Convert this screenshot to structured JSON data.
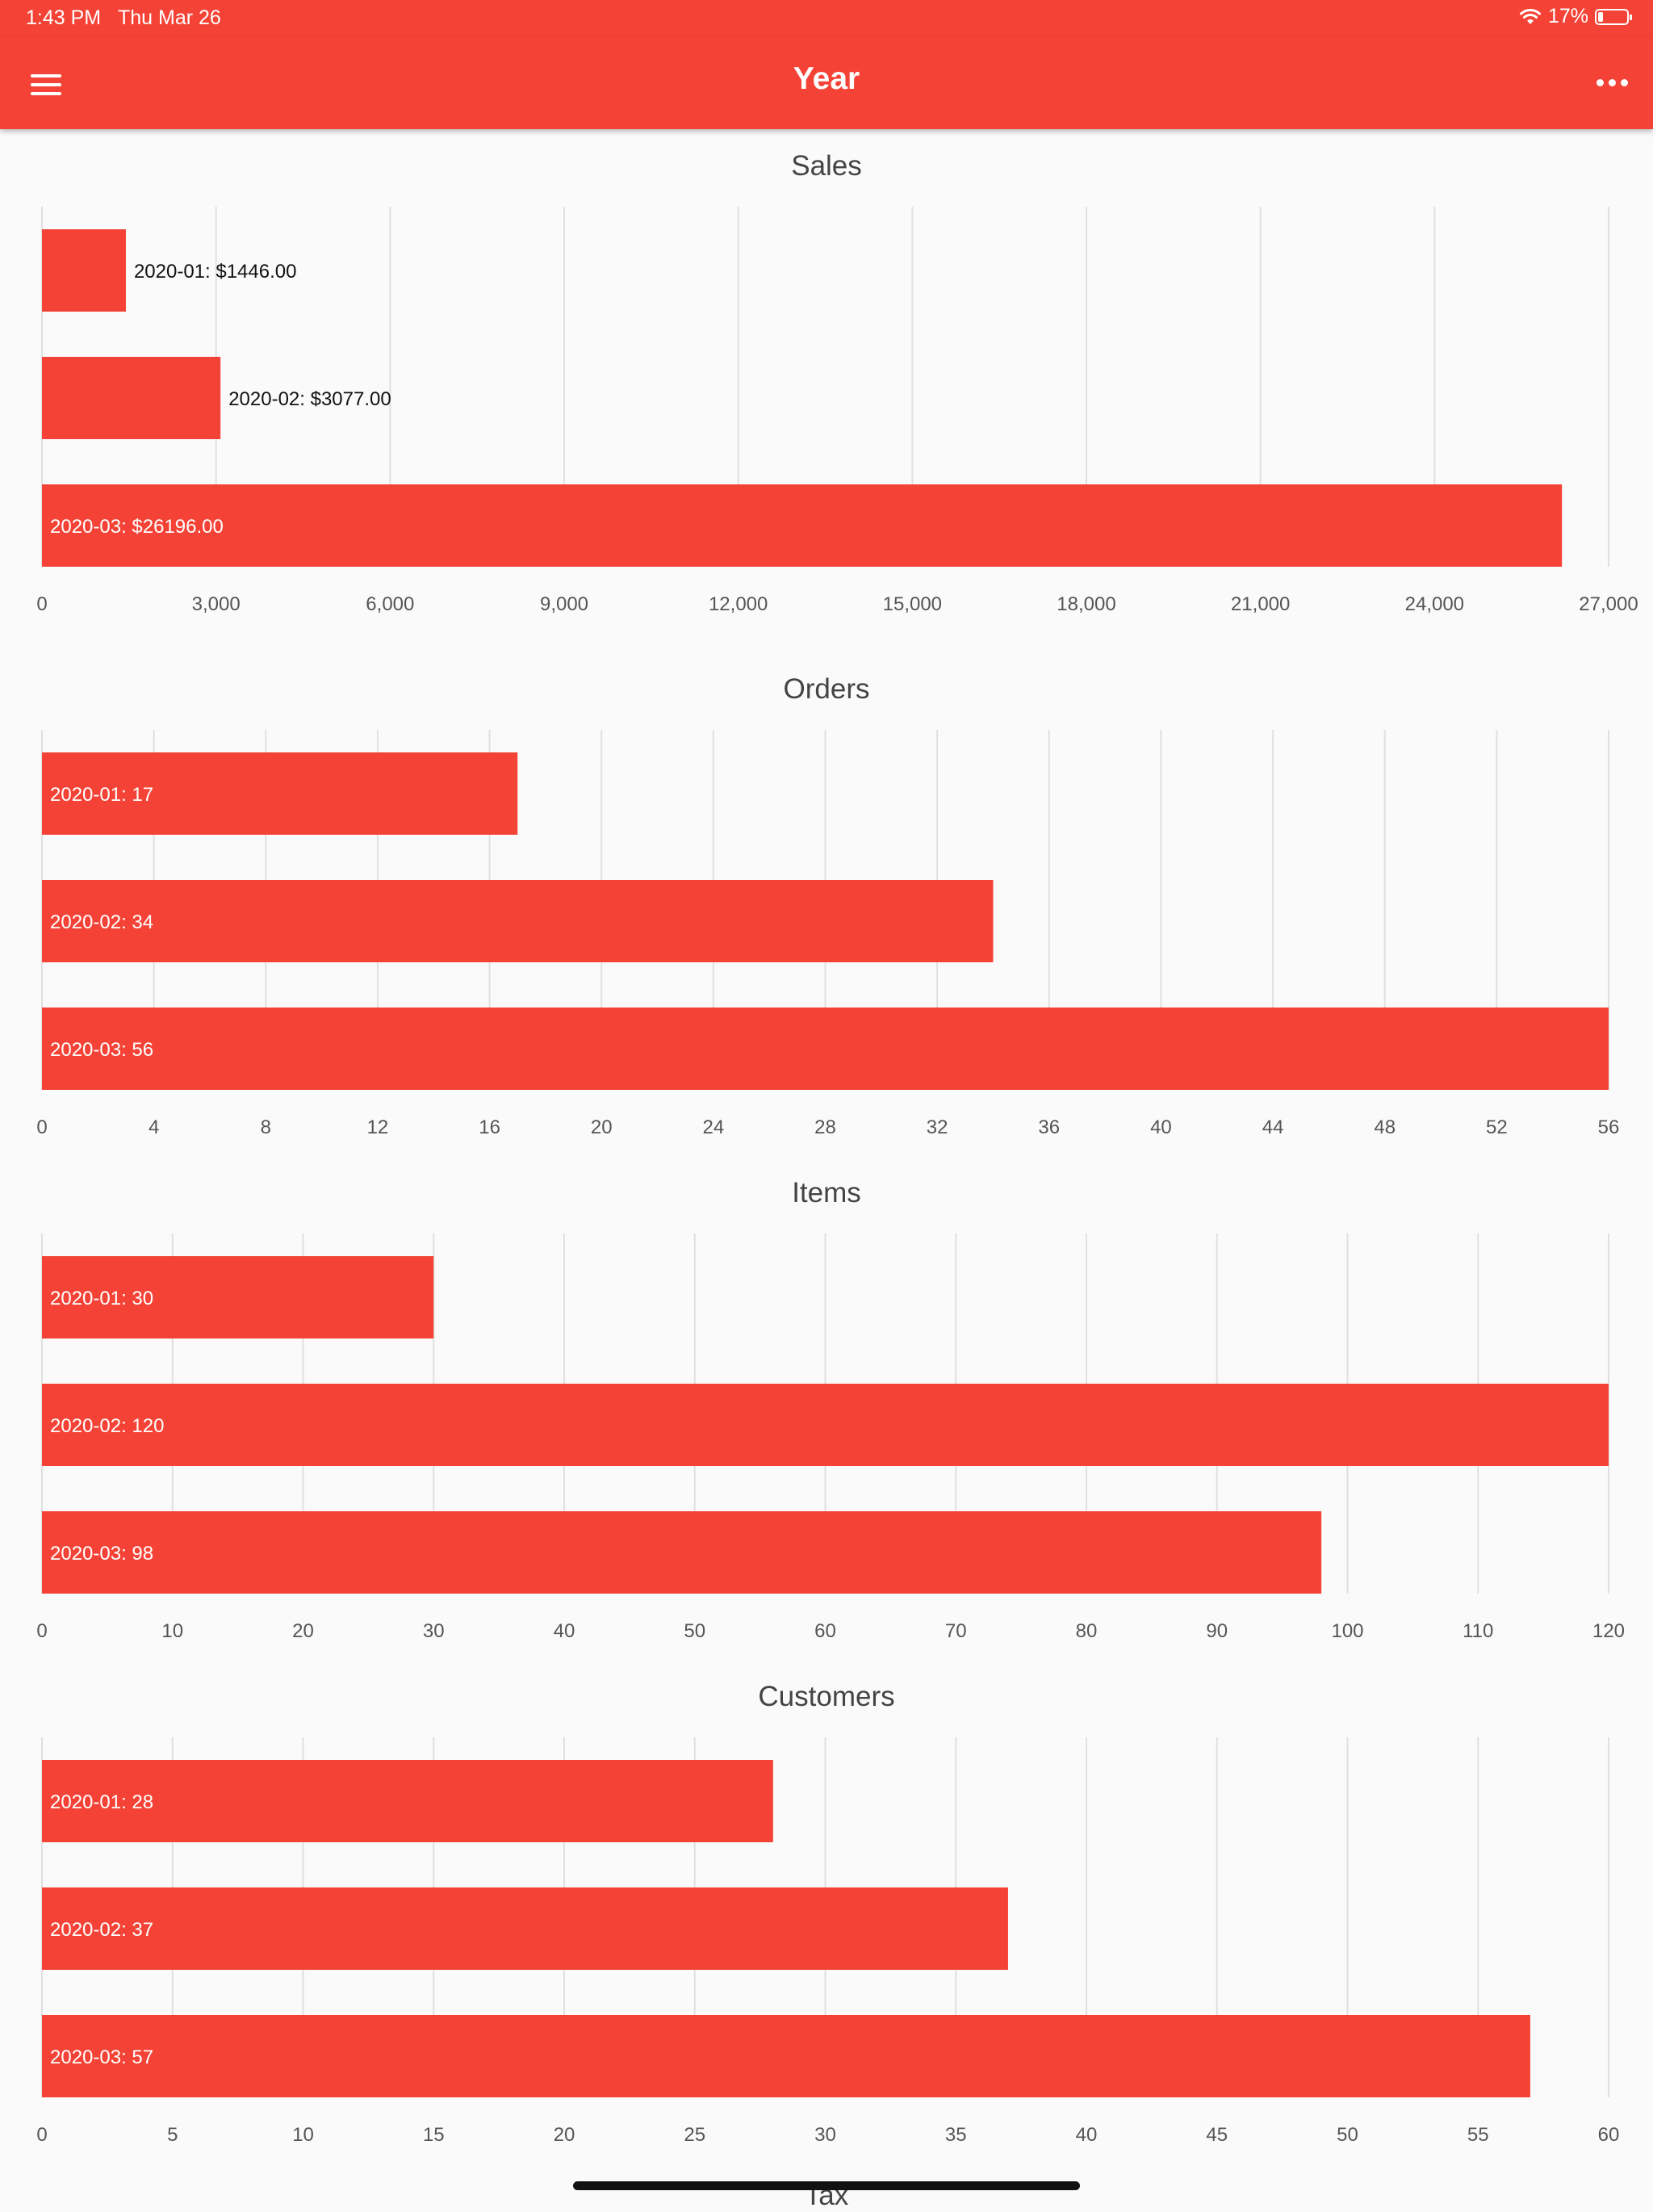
{
  "status_bar": {
    "time": "1:43 PM",
    "date": "Thu Mar 26",
    "battery_text": "17%",
    "battery_level": 0.17,
    "wifi_icon": "wifi-icon"
  },
  "app_bar": {
    "title": "Year",
    "left_icon": "menu-icon",
    "right_icon": "more-icon"
  },
  "colors": {
    "accent": "#f44336",
    "background": "#fafafa",
    "grid": "#e0e0e0"
  },
  "chart_data": [
    {
      "type": "bar",
      "orientation": "horizontal",
      "title": "Sales",
      "categories": [
        "2020-01",
        "2020-02",
        "2020-03"
      ],
      "values": [
        1446,
        3077,
        26196
      ],
      "labels": [
        "2020-01: $1446.00",
        "2020-02: $3077.00",
        "2020-03: $26196.00"
      ],
      "xlim": [
        0,
        27000
      ],
      "ticks": [
        0,
        3000,
        6000,
        9000,
        12000,
        15000,
        18000,
        21000,
        24000,
        27000
      ],
      "tick_labels": [
        "0",
        "3,000",
        "6,000",
        "9,000",
        "12,000",
        "15,000",
        "18,000",
        "21,000",
        "24,000",
        "27,000"
      ],
      "grid": true
    },
    {
      "type": "bar",
      "orientation": "horizontal",
      "title": "Orders",
      "categories": [
        "2020-01",
        "2020-02",
        "2020-03"
      ],
      "values": [
        17,
        34,
        56
      ],
      "labels": [
        "2020-01: 17",
        "2020-02: 34",
        "2020-03: 56"
      ],
      "xlim": [
        0,
        56
      ],
      "ticks": [
        0,
        4,
        8,
        12,
        16,
        20,
        24,
        28,
        32,
        36,
        40,
        44,
        48,
        52,
        56
      ],
      "tick_labels": [
        "0",
        "4",
        "8",
        "12",
        "16",
        "20",
        "24",
        "28",
        "32",
        "36",
        "40",
        "44",
        "48",
        "52",
        "56"
      ],
      "grid": true
    },
    {
      "type": "bar",
      "orientation": "horizontal",
      "title": "Items",
      "categories": [
        "2020-01",
        "2020-02",
        "2020-03"
      ],
      "values": [
        30,
        120,
        98
      ],
      "labels": [
        "2020-01: 30",
        "2020-02: 120",
        "2020-03: 98"
      ],
      "xlim": [
        0,
        120
      ],
      "ticks": [
        0,
        10,
        20,
        30,
        40,
        50,
        60,
        70,
        80,
        90,
        100,
        110,
        120
      ],
      "tick_labels": [
        "0",
        "10",
        "20",
        "30",
        "40",
        "50",
        "60",
        "70",
        "80",
        "90",
        "100",
        "110",
        "120"
      ],
      "grid": true
    },
    {
      "type": "bar",
      "orientation": "horizontal",
      "title": "Customers",
      "categories": [
        "2020-01",
        "2020-02",
        "2020-03"
      ],
      "values": [
        28,
        37,
        57
      ],
      "labels": [
        "2020-01: 28",
        "2020-02: 37",
        "2020-03: 57"
      ],
      "xlim": [
        0,
        60
      ],
      "ticks": [
        0,
        5,
        10,
        15,
        20,
        25,
        30,
        35,
        40,
        45,
        50,
        55,
        60
      ],
      "tick_labels": [
        "0",
        "5",
        "10",
        "15",
        "20",
        "25",
        "30",
        "35",
        "40",
        "45",
        "50",
        "55",
        "60"
      ],
      "grid": true
    }
  ],
  "next_chart_title": "Tax"
}
